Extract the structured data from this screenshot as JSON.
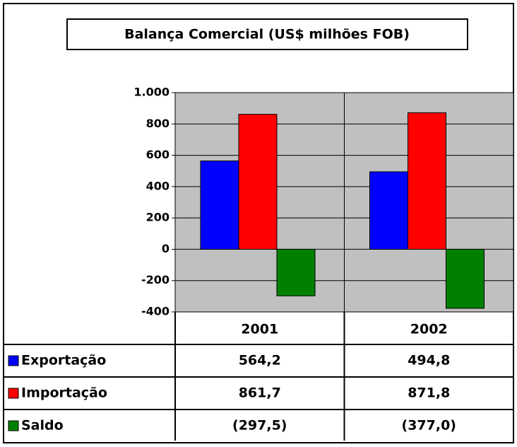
{
  "chart_data": {
    "type": "bar",
    "title": "Balança Comercial (US$ milhões FOB)",
    "categories": [
      "2001",
      "2002"
    ],
    "series": [
      {
        "name": "Exportação",
        "color": "#0000ff",
        "values": [
          564.2,
          494.8
        ],
        "value_labels": [
          "564,2",
          "494,8"
        ]
      },
      {
        "name": "Importação",
        "color": "#ff0000",
        "values": [
          861.7,
          871.8
        ],
        "value_labels": [
          "861,7",
          "871,8"
        ]
      },
      {
        "name": "Saldo",
        "color": "#008000",
        "values": [
          -297.5,
          -377.0
        ],
        "value_labels": [
          "(297,5)",
          "(377,0)"
        ]
      }
    ],
    "ylim": [
      -400,
      1000
    ],
    "yticks": [
      -400,
      -200,
      0,
      200,
      400,
      600,
      {
        "value": 800,
        "label": "800"
      },
      {
        "value": 1000,
        "label": "1.000"
      }
    ],
    "grid": true,
    "plot_background": "#c0c0c0"
  }
}
